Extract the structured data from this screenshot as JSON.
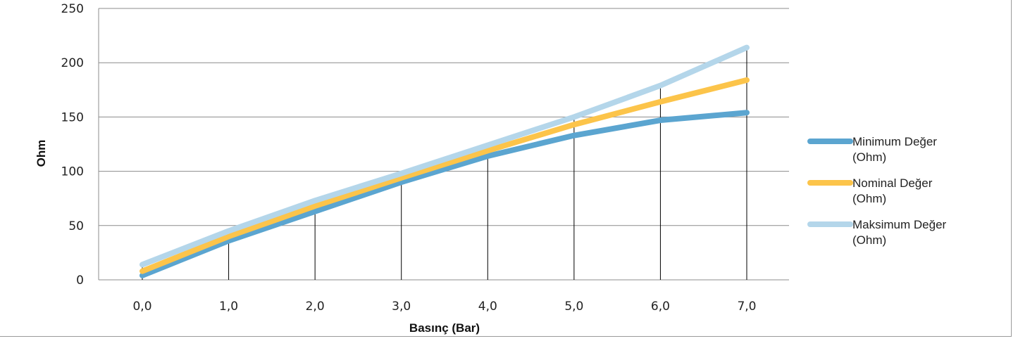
{
  "chart_data": {
    "type": "line",
    "title": "",
    "xlabel": "Basınç (Bar)",
    "ylabel": "Ohm",
    "categories": [
      "0,0",
      "1,0",
      "2,0",
      "3,0",
      "4,0",
      "5,0",
      "6,0",
      "7,0"
    ],
    "yticks": [
      "0",
      "50",
      "100",
      "150",
      "200",
      "250"
    ],
    "ylim": [
      0,
      250
    ],
    "grid": true,
    "legend_position": "right",
    "series": [
      {
        "name": "Minimum Değer (Ohm)",
        "name_lines": [
          "Minimum Değer",
          "(Ohm)"
        ],
        "color": "#5ba5d0",
        "values": [
          4,
          36,
          63,
          90,
          114,
          133,
          147,
          154
        ]
      },
      {
        "name": "Nominal Değer (Ohm)",
        "name_lines": [
          "Nominal Değer",
          "(Ohm)"
        ],
        "color": "#fcc44a",
        "values": [
          8,
          40,
          68,
          94,
          119,
          143,
          164,
          184
        ]
      },
      {
        "name": "Maksimum Değer (Ohm)",
        "name_lines": [
          "Maksimum Değer",
          "(Ohm)"
        ],
        "color": "#b4d6ea",
        "values": [
          14,
          45,
          73,
          98,
          124,
          150,
          179,
          214
        ]
      }
    ],
    "drop_lines": true
  }
}
